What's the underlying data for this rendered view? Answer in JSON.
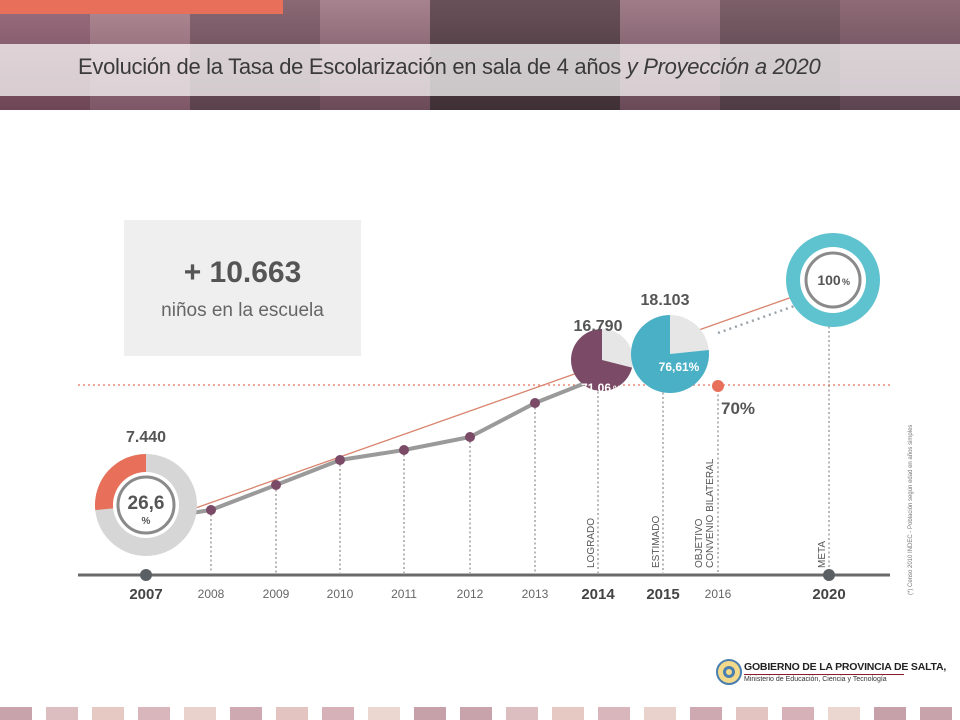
{
  "header": {
    "title_main": "Evolución de la Tasa de Escolarización en sala de 4 años",
    "title_italic": "y Proyección a 2020"
  },
  "stat": {
    "number": "+ 10.663",
    "caption": "niños en la escuela"
  },
  "colors": {
    "accent_orange": "#e8705a",
    "purple": "#7a4a66",
    "teal": "#4ab0c6",
    "gray_line": "#9a9a9a",
    "trend_line": "#d9836c"
  },
  "footer": {
    "org": "GOBIERNO DE LA PROVINCIA DE SALTA,",
    "ministry": "Ministerio de Educación, Ciencia y Tecnología"
  },
  "chart_data": {
    "type": "line",
    "x": [
      "2007",
      "2008",
      "2009",
      "2010",
      "2011",
      "2012",
      "2013",
      "2014",
      "2015",
      "2016",
      "2020"
    ],
    "series": [],
    "points": [
      {
        "year": "2007",
        "circle": true,
        "value_label": "7.440",
        "pct_label": "26,6",
        "pct_unit": "%",
        "rate": 26.6
      },
      {
        "year": "2008"
      },
      {
        "year": "2009"
      },
      {
        "year": "2010"
      },
      {
        "year": "2011"
      },
      {
        "year": "2012"
      },
      {
        "year": "2013"
      },
      {
        "year": "2014",
        "circle": true,
        "value_label": "16.790",
        "pct_label": "71,06",
        "pct_unit": "%",
        "rate": 71.06,
        "vertical_label": "LOGRADO"
      },
      {
        "year": "2015",
        "circle": true,
        "value_label": "18.103",
        "pct_label": "76,61%",
        "rate": 76.61,
        "vertical_label": "ESTIMADO"
      },
      {
        "year": "2016",
        "target_marker": true,
        "value_label": "70%",
        "rate": 70,
        "vertical_label_lines": [
          "OBJETIVO",
          "CONVENIO BILATERAL"
        ]
      },
      {
        "year": "2020",
        "circle": true,
        "pct_label": "100",
        "pct_unit": "%",
        "rate": 100,
        "vertical_label": "META"
      }
    ],
    "reference_line": {
      "value": 70,
      "style": "dotted"
    },
    "bold_years": [
      "2007",
      "2014",
      "2015",
      "2020"
    ],
    "footnote": "(*) Censo 2010 INDEC - Población según edad en años simples"
  }
}
